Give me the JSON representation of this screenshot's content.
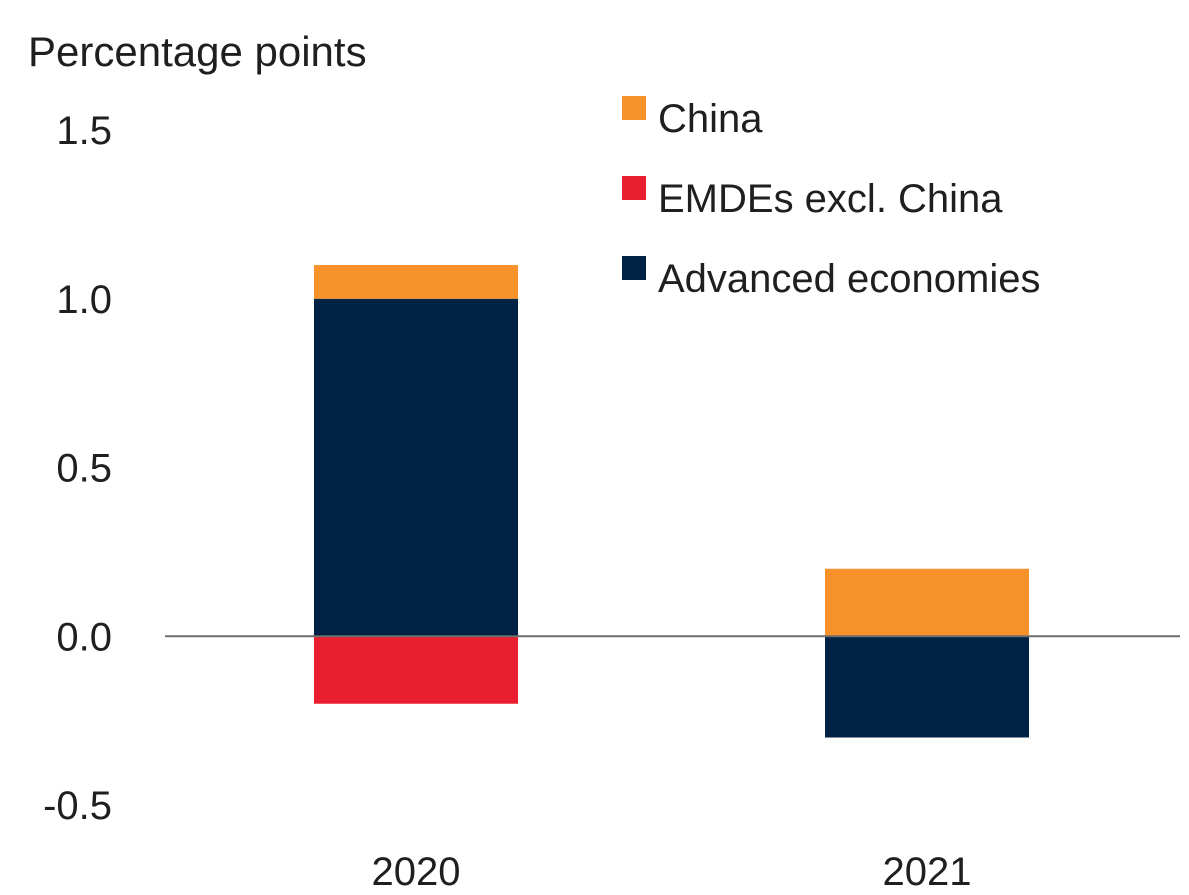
{
  "chart_data": {
    "type": "bar",
    "stacked": true,
    "ylabel": "Percentage points",
    "categories": [
      "2020",
      "2021"
    ],
    "series": [
      {
        "name": "China",
        "values": [
          0.1,
          0.2
        ],
        "color": "#F7922A"
      },
      {
        "name": "EMDEs excl. China",
        "values": [
          -0.2,
          0.0
        ],
        "color": "#E91E2E"
      },
      {
        "name": "Advanced economies",
        "values": [
          1.0,
          -0.3
        ],
        "color": "#002244"
      }
    ],
    "ylim": [
      -0.5,
      1.5
    ],
    "yticks": [
      "1.5",
      "1.0",
      "0.5",
      "0.0",
      "-0.5"
    ],
    "ytick_values": [
      1.5,
      1.0,
      0.5,
      0.0,
      -0.5
    ],
    "grid": false,
    "legend_position": "top-right"
  }
}
